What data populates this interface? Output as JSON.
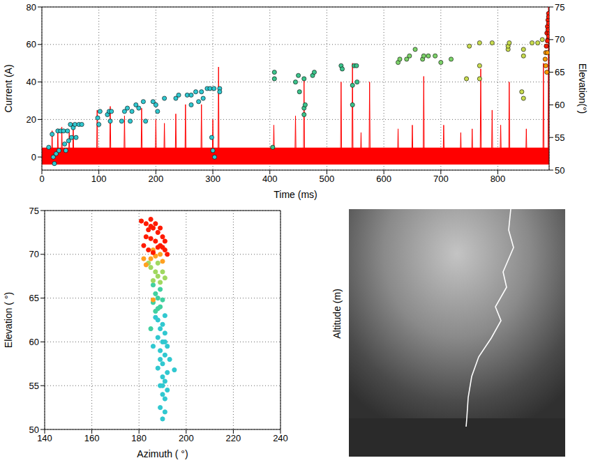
{
  "chart_data": [
    {
      "type": "line",
      "xlabel": "Time (ms)",
      "ylabel": "Current (A)",
      "y2label": "Elevation(°)",
      "xlim": [
        0,
        890
      ],
      "xticks": [
        0,
        100,
        200,
        300,
        400,
        500,
        600,
        700,
        800
      ],
      "ylim": [
        -7,
        80
      ],
      "yticks": [
        0,
        20,
        40,
        60,
        80
      ],
      "y2lim": [
        50,
        75
      ],
      "y2ticks": [
        50,
        55,
        60,
        65,
        70,
        75
      ],
      "grid": true,
      "noise_range": [
        -4,
        5
      ],
      "series": [
        {
          "type": "line",
          "color": "#ff0000",
          "x": [
            17,
            18,
            19,
            27,
            28,
            29,
            34,
            35,
            36,
            47,
            48,
            49,
            54,
            55,
            56,
            96,
            97,
            98,
            119,
            120,
            121,
            144,
            145,
            146,
            174,
            175,
            176,
            199,
            200,
            201,
            214,
            215,
            216,
            234,
            235,
            236,
            251,
            252,
            253,
            279,
            280,
            281,
            299,
            300,
            301,
            309,
            310,
            311,
            406,
            407,
            408,
            444,
            445,
            446,
            459,
            460,
            461,
            524,
            525,
            526,
            544,
            545,
            546,
            559,
            560,
            561,
            574,
            575,
            576,
            624,
            625,
            626,
            649,
            650,
            651,
            669,
            670,
            671,
            704,
            705,
            706,
            734,
            735,
            736,
            754,
            755,
            756,
            769,
            770,
            771,
            789,
            790,
            791,
            804,
            805,
            806,
            819,
            820,
            821,
            849,
            850,
            851,
            879,
            880,
            881,
            888,
            889,
            890
          ],
          "values": [
            0,
            14,
            0,
            0,
            15,
            0,
            0,
            16,
            0,
            0,
            13,
            0,
            0,
            18,
            0,
            0,
            25,
            0,
            0,
            27,
            0,
            0,
            22,
            0,
            0,
            26,
            0,
            0,
            20,
            0,
            0,
            18,
            0,
            0,
            23,
            0,
            0,
            28,
            0,
            0,
            28,
            0,
            0,
            20,
            0,
            0,
            48,
            0,
            0,
            17,
            0,
            0,
            22,
            0,
            0,
            42,
            0,
            0,
            40,
            0,
            0,
            50,
            0,
            0,
            13,
            0,
            0,
            40,
            0,
            0,
            15,
            0,
            0,
            17,
            0,
            0,
            43,
            0,
            0,
            17,
            0,
            0,
            13,
            0,
            0,
            15,
            0,
            0,
            47,
            0,
            0,
            25,
            0,
            0,
            17,
            0,
            0,
            40,
            0,
            0,
            15,
            0,
            0,
            50,
            0,
            0,
            80,
            0
          ]
        },
        {
          "type": "scatter",
          "axis": "y2",
          "color": "#30c8d0",
          "marker": "circle",
          "x": [
            12,
            18,
            20,
            22,
            25,
            28,
            30,
            33,
            38,
            40,
            42,
            45,
            47,
            50,
            52,
            55,
            58,
            60,
            65,
            70,
            98,
            100,
            102,
            115,
            118,
            120,
            122,
            140,
            145,
            150,
            155,
            158,
            165,
            170,
            178,
            182,
            195,
            200,
            203,
            215,
            235,
            240,
            255,
            262,
            262,
            270,
            275,
            280,
            283,
            290,
            295,
            298,
            300,
            302,
            303,
            312,
            312
          ],
          "values": [
            53.5,
            55.5,
            52,
            51,
            52.5,
            56,
            53,
            56,
            56,
            54,
            53,
            56,
            54.5,
            57,
            55,
            56.5,
            57,
            55,
            57,
            57,
            58,
            57,
            59,
            58.5,
            59,
            57.5,
            59,
            57.5,
            59,
            59.5,
            57.5,
            59,
            60,
            59.5,
            60.5,
            57.5,
            60.5,
            60,
            59,
            61,
            61,
            61.5,
            61.5,
            60,
            61.5,
            62,
            60.5,
            62,
            61,
            62.5,
            62.5,
            55,
            53,
            62.5,
            52,
            62.5,
            62
          ]
        },
        {
          "type": "scatter",
          "axis": "y2",
          "color": "#3cc48c",
          "marker": "circle",
          "x": [
            405,
            408,
            408,
            445,
            450,
            452,
            460,
            460,
            462,
            460,
            475,
            478,
            525,
            527,
            545,
            545,
            548,
            552,
            553
          ],
          "values": [
            53.5,
            64,
            65,
            63.5,
            64.5,
            62,
            64,
            59.5,
            60,
            58.5,
            64.5,
            65,
            66,
            65.5,
            63,
            60,
            66,
            66,
            63.5
          ]
        },
        {
          "type": "scatter",
          "axis": "y2",
          "color": "#7dd36a",
          "marker": "circle",
          "x": [
            625,
            628,
            640,
            645,
            655,
            668,
            670,
            678,
            690,
            700,
            718
          ],
          "values": [
            66.5,
            67,
            67,
            67.5,
            68.5,
            67,
            67.5,
            67.5,
            67.5,
            66.5,
            67
          ]
        },
        {
          "type": "scatter",
          "axis": "y2",
          "color": "#c8dc50",
          "marker": "circle",
          "x": [
            745,
            750,
            768,
            768,
            768,
            790,
            818,
            818,
            820,
            845,
            845,
            845,
            842,
            860,
            870,
            878
          ],
          "values": [
            64,
            69,
            69.5,
            66,
            64,
            69.5,
            68.5,
            69,
            69.5,
            68.5,
            67.5,
            61,
            62,
            69.5,
            69.5,
            70
          ]
        },
        {
          "type": "scatter",
          "axis": "y2",
          "color": "#ff9900",
          "marker": "circle",
          "x": [
            883,
            884,
            884,
            886,
            887
          ],
          "values": [
            67,
            68,
            66,
            65,
            68
          ]
        },
        {
          "type": "scatter",
          "axis": "y2",
          "color": "#ff1a00",
          "marker": "circle",
          "x": [
            885,
            886,
            887,
            888,
            889,
            888,
            889,
            890,
            889,
            888,
            887,
            889
          ],
          "values": [
            69,
            71,
            72,
            73,
            74,
            70,
            72.5,
            71,
            70.5,
            71.5,
            69.8,
            73.5
          ]
        }
      ]
    },
    {
      "type": "scatter",
      "xlabel": "Azimuth ( °)",
      "ylabel": "Elevation ( °)",
      "xlim": [
        140,
        240
      ],
      "xticks": [
        140,
        160,
        180,
        200,
        220,
        240
      ],
      "ylim": [
        50,
        75
      ],
      "yticks": [
        50,
        55,
        60,
        65,
        70,
        75
      ],
      "grid": true,
      "series": [
        {
          "color": "#30c8d0",
          "marker": "circle",
          "x": [
            190,
            191,
            189,
            191,
            190,
            192,
            189,
            191,
            190,
            192,
            188,
            190,
            193,
            191,
            189,
            192,
            190,
            188,
            191,
            189,
            190,
            188,
            191,
            187,
            190,
            189,
            191,
            195,
            186
          ],
          "values": [
            51.2,
            52,
            52.5,
            53.5,
            54,
            54.5,
            55,
            55.5,
            56,
            56.5,
            57,
            57.5,
            58,
            58.5,
            59,
            59.5,
            60,
            60.5,
            61,
            61.5,
            62,
            62.5,
            63,
            62.8,
            55,
            58,
            60,
            56.8,
            59.5
          ]
        },
        {
          "color": "#40d0a0",
          "marker": "circle",
          "x": [
            187,
            189,
            186,
            188,
            190,
            187,
            189,
            185,
            186,
            188
          ],
          "values": [
            63.5,
            64,
            64.5,
            65,
            64.8,
            65.5,
            66,
            61.5,
            66.5,
            63.8
          ]
        },
        {
          "color": "#a0d860",
          "marker": "circle",
          "x": [
            186,
            188,
            190,
            185,
            187,
            189,
            184,
            191,
            188
          ],
          "values": [
            67,
            67.5,
            68,
            68.5,
            68,
            66.8,
            69,
            67.3,
            69
          ]
        },
        {
          "color": "#ffa020",
          "marker": "circle",
          "x": [
            183,
            185,
            187,
            189,
            190,
            186,
            182,
            186
          ],
          "values": [
            68.8,
            69.5,
            69.8,
            70,
            69.2,
            70.5,
            69.5,
            64.8
          ]
        },
        {
          "color": "#ff1a00",
          "marker": "circle",
          "x": [
            181,
            183,
            185,
            184,
            186,
            188,
            190,
            187,
            189,
            191,
            192,
            185,
            183,
            186,
            188,
            190,
            184,
            187,
            189,
            191,
            182,
            185
          ],
          "values": [
            73.8,
            73.5,
            74,
            72.8,
            73,
            72.5,
            72,
            71.5,
            71,
            70.5,
            70,
            71.8,
            72,
            70.2,
            70.8,
            70.8,
            70.5,
            73.5,
            73,
            71.5,
            71,
            73.2
          ]
        }
      ]
    },
    {
      "type": "image",
      "ylabel": "Altitude (m)"
    }
  ]
}
